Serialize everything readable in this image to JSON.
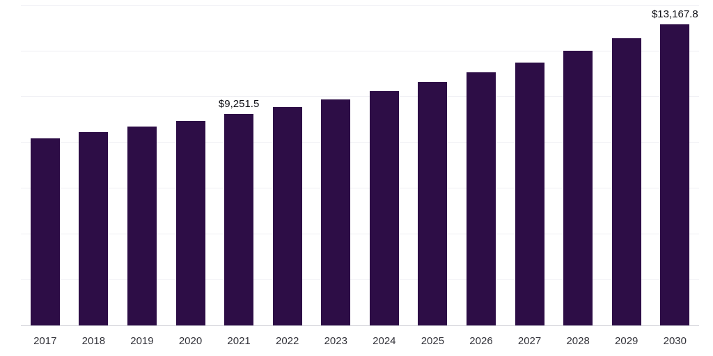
{
  "chart_data": {
    "type": "bar",
    "title": "",
    "xlabel": "",
    "ylabel": "",
    "categories": [
      "2017",
      "2018",
      "2019",
      "2020",
      "2021",
      "2022",
      "2023",
      "2024",
      "2025",
      "2026",
      "2027",
      "2028",
      "2029",
      "2030"
    ],
    "values": [
      8200,
      8450,
      8700,
      8960,
      9251.5,
      9560,
      9900,
      10260,
      10650,
      11070,
      11520,
      12020,
      12570,
      13167.8
    ],
    "data_labels": [
      "",
      "",
      "",
      "",
      "$9,251.5",
      "",
      "",
      "",
      "",
      "",
      "",
      "",
      "",
      "$13,167.8"
    ],
    "ylim": [
      0,
      14000
    ],
    "gridline_values": [
      2000,
      4000,
      6000,
      8000,
      10000,
      12000,
      14000
    ],
    "grid": "horizontal-faint",
    "legend": "none",
    "bar_color": "#2d0d46",
    "axis_line_color": "#cfcfd6",
    "gridline_color": "#eeeef3",
    "label_color": "#0e0e14",
    "tick_label_color": "#33333a"
  }
}
